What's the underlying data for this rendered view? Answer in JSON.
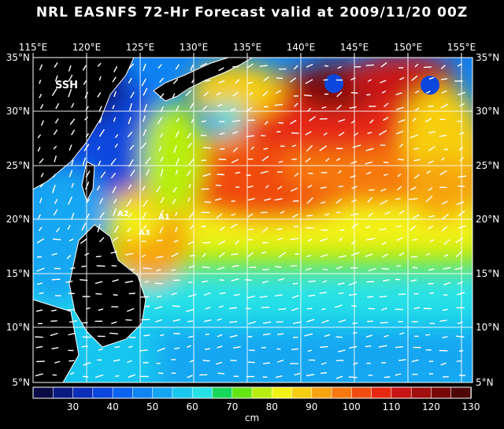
{
  "title": "NRL EASNFS  72-Hr Forecast valid at 2009/11/20 00Z",
  "map": {
    "field_label": "SSH",
    "lon_labels": [
      "115°E",
      "120°E",
      "125°E",
      "130°E",
      "135°E",
      "140°E",
      "145°E",
      "150°E",
      "155°E"
    ],
    "lat_labels": [
      "35°N",
      "30°N",
      "25°N",
      "20°N",
      "15°N",
      "10°N",
      "5°N"
    ],
    "station_labels": [
      "A1",
      "A2",
      "A3"
    ],
    "domain": {
      "lon_min": 115,
      "lon_max": 156,
      "lat_min": 5,
      "lat_max": 35
    }
  },
  "colorbar": {
    "unit": "cm",
    "tick_labels": [
      "30",
      "40",
      "50",
      "60",
      "70",
      "80",
      "90",
      "100",
      "110",
      "120",
      "130"
    ],
    "colors": [
      "#0a0a44",
      "#0a1a80",
      "#0b2eb8",
      "#0b46dd",
      "#0b62ee",
      "#0f84f2",
      "#15a6f2",
      "#19c6ee",
      "#26e2e6",
      "#18d65a",
      "#64e614",
      "#b8ee0f",
      "#f2f212",
      "#f6ce10",
      "#f6a410",
      "#f67810",
      "#f04c10",
      "#e62812",
      "#c81414",
      "#a00e0e",
      "#780808",
      "#4e0606"
    ]
  },
  "icons": {
    "arrows": "velocity-vector-icons"
  }
}
